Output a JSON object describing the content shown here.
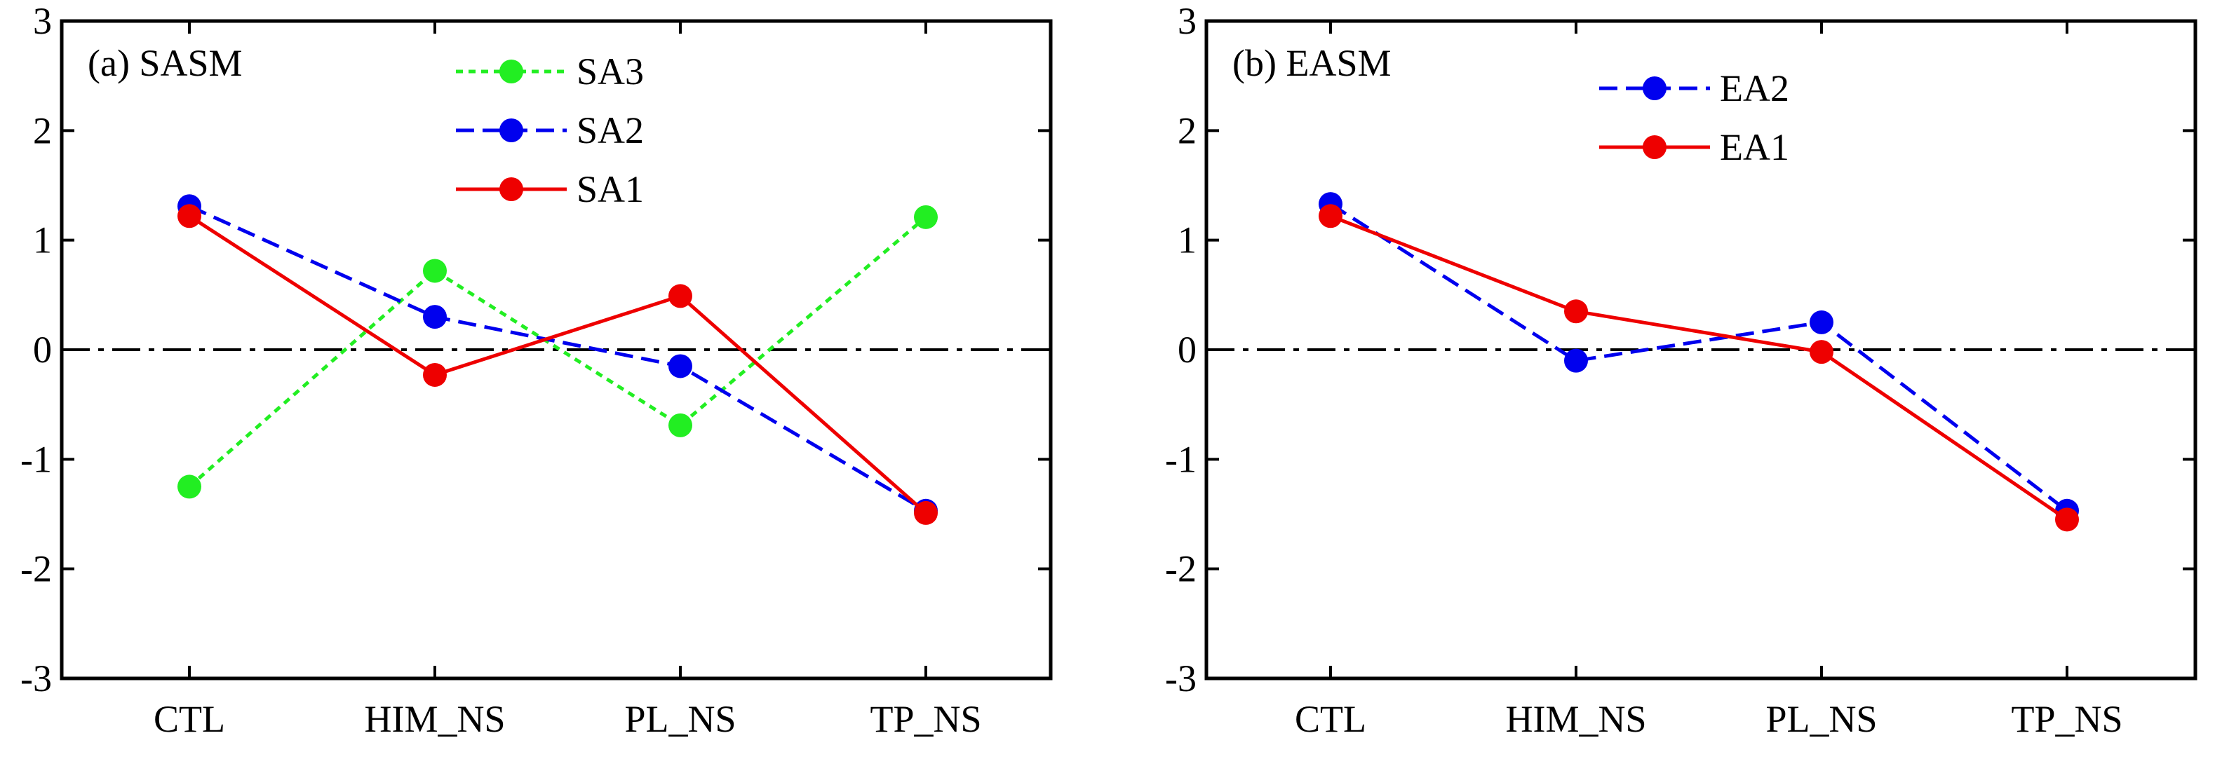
{
  "chart_data": [
    {
      "type": "line",
      "title": "(a) SASM",
      "categories": [
        "CTL",
        "HIM_NS",
        "PL_NS",
        "TP_NS"
      ],
      "ylim": [
        -3,
        3
      ],
      "yticks": [
        3,
        2,
        1,
        0,
        -1,
        -2,
        -3
      ],
      "ytick_labels": [
        "3",
        "2",
        "1",
        "0",
        "-1",
        "-2",
        "-3"
      ],
      "zero_line": "dash-dot",
      "grid": false,
      "legend": "top-center",
      "series": [
        {
          "name": "SA3",
          "color": "#22ee22",
          "style": "dotted",
          "values": [
            -1.25,
            0.72,
            -0.69,
            1.21
          ]
        },
        {
          "name": "SA2",
          "color": "#0000ee",
          "style": "dashed",
          "values": [
            1.31,
            0.3,
            -0.15,
            -1.47
          ]
        },
        {
          "name": "SA1",
          "color": "#ee0000",
          "style": "solid",
          "values": [
            1.22,
            -0.23,
            0.49,
            -1.49
          ]
        }
      ]
    },
    {
      "type": "line",
      "title": "(b) EASM",
      "categories": [
        "CTL",
        "HIM_NS",
        "PL_NS",
        "TP_NS"
      ],
      "ylim": [
        -3,
        3
      ],
      "yticks": [
        3,
        2,
        1,
        0,
        -1,
        -2,
        -3
      ],
      "ytick_labels": [
        "3",
        "2",
        "1",
        "0",
        "-1",
        "-2",
        "-3"
      ],
      "zero_line": "dash-dot",
      "grid": false,
      "legend": "top-center",
      "series": [
        {
          "name": "EA2",
          "color": "#0000ee",
          "style": "dashed",
          "values": [
            1.33,
            -0.1,
            0.25,
            -1.47
          ]
        },
        {
          "name": "EA1",
          "color": "#ee0000",
          "style": "solid",
          "values": [
            1.22,
            0.35,
            -0.02,
            -1.55
          ]
        }
      ]
    }
  ]
}
